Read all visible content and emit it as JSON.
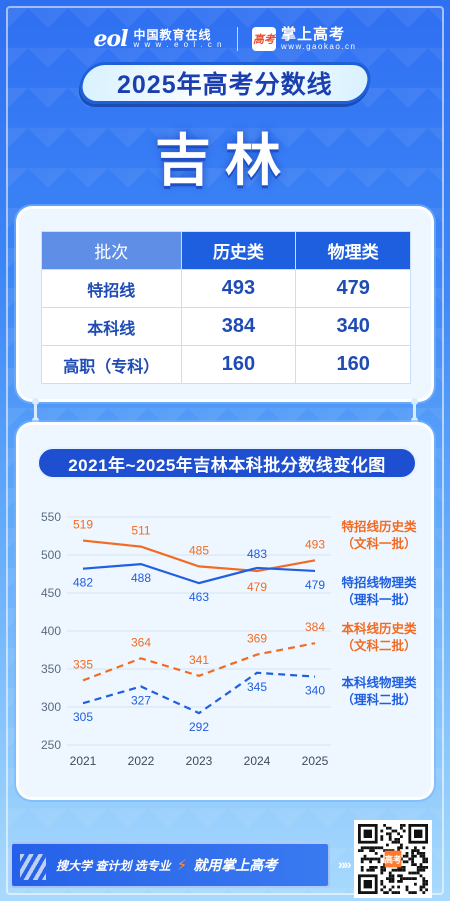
{
  "header": {
    "eol_mark": "eol",
    "eol_name": "中国教育在线",
    "eol_url": "w w w . e o l . c n",
    "gk_badge": "高考",
    "gk_name": "掌上高考",
    "gk_url": "www.gaokao.cn"
  },
  "title": "2025年高考分数线",
  "province": "吉林",
  "table": {
    "headers": [
      "批次",
      "历史类",
      "物理类"
    ],
    "rows": [
      {
        "label": "特招线",
        "history": "493",
        "physics": "479"
      },
      {
        "label": "本科线",
        "history": "384",
        "physics": "340"
      },
      {
        "label": "高职（专科）",
        "history": "160",
        "physics": "160"
      }
    ]
  },
  "chart_data": {
    "type": "line",
    "title": "2021年~2025年吉林本科批分数线变化图",
    "x": [
      "2021",
      "2022",
      "2023",
      "2024",
      "2025"
    ],
    "ylim": [
      250,
      550
    ],
    "yticks": [
      250,
      300,
      350,
      400,
      450,
      500,
      550
    ],
    "grid": true,
    "series": [
      {
        "name": "特招线历史类",
        "sub": "（文科一批）",
        "values": [
          519,
          511,
          485,
          479,
          493
        ],
        "color": "#f26b22",
        "dash": false
      },
      {
        "name": "特招线物理类",
        "sub": "（理科一批）",
        "values": [
          482,
          488,
          463,
          483,
          479
        ],
        "color": "#1f5fe0",
        "dash": false
      },
      {
        "name": "本科线历史类",
        "sub": "（文科二批）",
        "values": [
          335,
          364,
          341,
          369,
          384
        ],
        "color": "#f26b22",
        "dash": true
      },
      {
        "name": "本科线物理类",
        "sub": "（理科二批）",
        "values": [
          305,
          327,
          292,
          345,
          340
        ],
        "color": "#1f5fe0",
        "dash": true
      }
    ]
  },
  "footer": {
    "slogan": "搜大学  查计划  选专业",
    "cta": "就用掌上高考",
    "qr_badge": "高考"
  },
  "colors": {
    "accent": "#1e4fd0",
    "history": "#f26b22",
    "physics": "#1f5fe0"
  }
}
